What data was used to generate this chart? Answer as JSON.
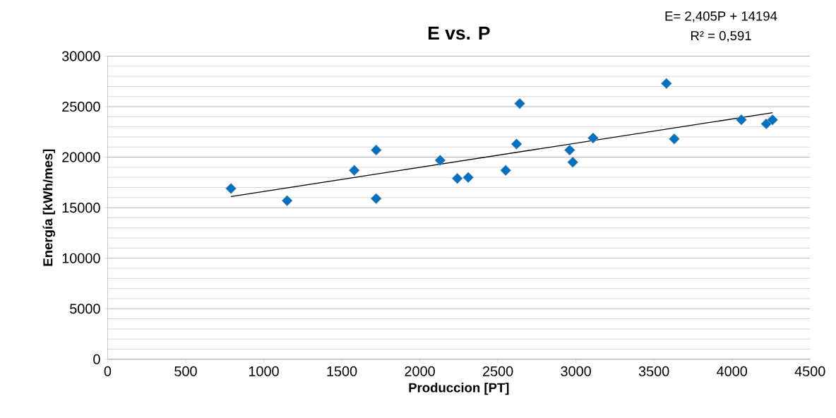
{
  "chart_data": {
    "type": "scatter",
    "title": "E vs. P",
    "xlabel": "Produccion [PT]",
    "ylabel": "Energía [kWh/mes]",
    "annotations": [
      "E= 2,405P + 14194",
      "R² = 0,591"
    ],
    "xlim": [
      0,
      4500
    ],
    "xticks": [
      0,
      500,
      1000,
      1500,
      2000,
      2500,
      3000,
      3500,
      4000,
      4500
    ],
    "ylim": [
      0,
      30000
    ],
    "yticks": [
      0,
      5000,
      10000,
      15000,
      20000,
      25000,
      30000
    ],
    "grid": "y",
    "marker": "diamond",
    "series": [
      {
        "color": "#0070c0",
        "x": [
          790,
          1150,
          1580,
          1720,
          1720,
          2130,
          2240,
          2310,
          2550,
          2620,
          2640,
          2960,
          2980,
          3110,
          3580,
          3630,
          4060,
          4220,
          4260
        ],
        "values": [
          16900,
          15700,
          18700,
          20700,
          15900,
          19700,
          17900,
          18000,
          18700,
          21300,
          25300,
          20700,
          19500,
          21900,
          27300,
          21800,
          23700,
          23300,
          23700
        ]
      },
      {
        "type": "line",
        "color": "#000000",
        "line_style": "solid",
        "marker": "none",
        "x": [
          790,
          4260
        ],
        "values": [
          16100,
          24400
        ]
      }
    ]
  }
}
